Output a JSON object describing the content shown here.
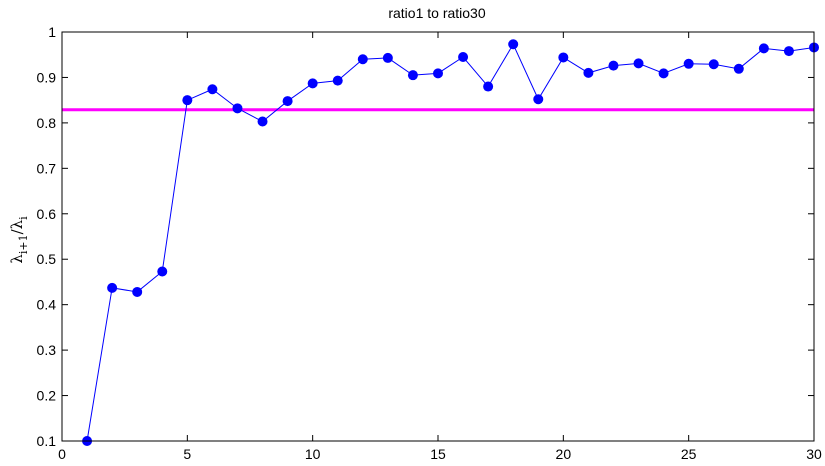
{
  "chart_data": {
    "type": "line",
    "title": "ratio1 to ratio30",
    "ylabel_main": "λ",
    "ylabel_sub1": "i+1",
    "ylabel_mid": "/λ",
    "ylabel_sub2": "i",
    "xlabel": "",
    "xlim": [
      0,
      30
    ],
    "ylim": [
      0.1,
      1.0
    ],
    "xticks": [
      0,
      5,
      10,
      15,
      20,
      25,
      30
    ],
    "yticks": [
      0.1,
      0.2,
      0.3,
      0.4,
      0.5,
      0.6,
      0.7,
      0.8,
      0.9,
      1.0
    ],
    "xtick_labels": [
      "0",
      "5",
      "10",
      "15",
      "20",
      "25",
      "30"
    ],
    "ytick_labels": [
      "0.1",
      "0.2",
      "0.3",
      "0.4",
      "0.5",
      "0.6",
      "0.7",
      "0.8",
      "0.9",
      "1"
    ],
    "grid": false,
    "series": [
      {
        "color": "#0000ff",
        "marker": "circle",
        "x": [
          1,
          2,
          3,
          4,
          5,
          6,
          7,
          8,
          9,
          10,
          11,
          12,
          13,
          14,
          15,
          16,
          17,
          18,
          19,
          20,
          21,
          22,
          23,
          24,
          25,
          26,
          27,
          28,
          29,
          30
        ],
        "values": [
          0.1,
          0.437,
          0.428,
          0.473,
          0.85,
          0.874,
          0.832,
          0.803,
          0.848,
          0.887,
          0.893,
          0.94,
          0.943,
          0.905,
          0.909,
          0.945,
          0.88,
          0.973,
          0.852,
          0.944,
          0.91,
          0.926,
          0.931,
          0.909,
          0.93,
          0.929,
          0.919,
          0.964,
          0.958,
          0.966
        ]
      }
    ],
    "hline": {
      "y": 0.829,
      "color": "#ff00ff"
    }
  }
}
